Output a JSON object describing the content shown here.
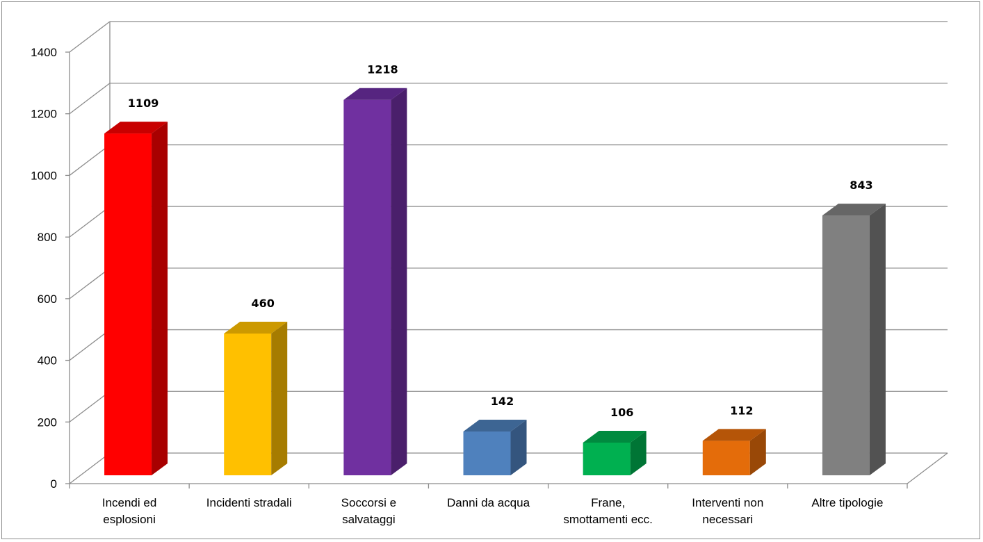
{
  "chart_data": {
    "type": "bar",
    "style": "3d-column",
    "title": "",
    "xlabel": "",
    "ylabel": "",
    "ylim": [
      0,
      1400
    ],
    "ytick_step": 200,
    "yticks": [
      "0",
      "200",
      "400",
      "600",
      "800",
      "1000",
      "1200",
      "1400"
    ],
    "grid": true,
    "legend": "none",
    "categories": [
      [
        "Incendi ed",
        "esplosioni"
      ],
      [
        "Incidenti stradali"
      ],
      [
        "Soccorsi e",
        "salvataggi"
      ],
      [
        "Danni da acqua"
      ],
      [
        "Frane,",
        "smottamenti ecc."
      ],
      [
        "Interventi non",
        "necessari"
      ],
      [
        "Altre tipologie"
      ]
    ],
    "values": [
      1109,
      460,
      1218,
      142,
      106,
      112,
      843
    ],
    "data_labels": [
      "1109",
      "460",
      "1218",
      "142",
      "106",
      "112",
      "843"
    ],
    "colors": [
      {
        "front": "#ff0000",
        "side": "#a80000",
        "top": "#c80000"
      },
      {
        "front": "#ffc000",
        "side": "#a67c00",
        "top": "#cc9900"
      },
      {
        "front": "#7030a0",
        "side": "#4a1f6b",
        "top": "#562580"
      },
      {
        "front": "#4f81bd",
        "side": "#34557e",
        "top": "#3d6593"
      },
      {
        "front": "#00b050",
        "side": "#007535",
        "top": "#008a3f"
      },
      {
        "front": "#e46c0a",
        "side": "#994807",
        "top": "#b55508"
      },
      {
        "front": "#808080",
        "side": "#525252",
        "top": "#666666"
      }
    ],
    "grid_color": "#8c8c8c"
  }
}
